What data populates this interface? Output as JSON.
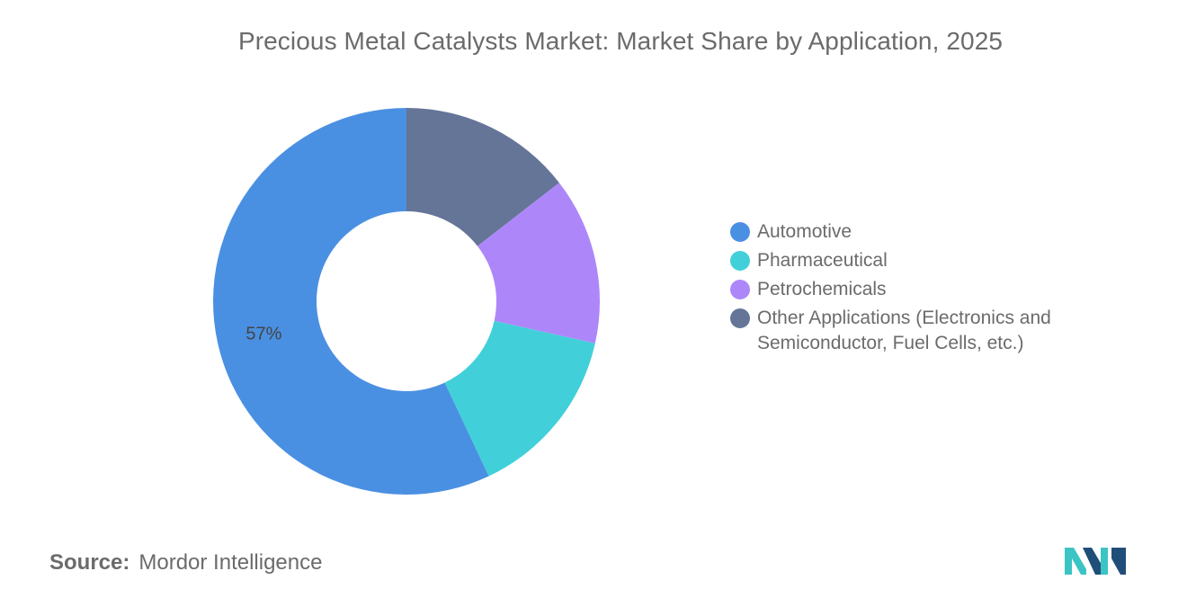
{
  "chart_data": {
    "type": "pie",
    "title": "Precious Metal Catalysts Market: Market Share by Application, 2025",
    "slices": [
      {
        "label": "Automotive",
        "value": 57,
        "color": "#4a90e2",
        "data_label": "57%"
      },
      {
        "label": "Pharmaceutical",
        "value": 14.5,
        "color": "#41d0d9",
        "data_label": ""
      },
      {
        "label": "Petrochemicals",
        "value": 14,
        "color": "#ad87fa",
        "data_label": ""
      },
      {
        "label": "Other Applications (Electronics and Semiconductor, Fuel Cells, etc.)",
        "value": 14.5,
        "color": "#657598",
        "data_label": ""
      }
    ],
    "donut": true,
    "legend_position": "right"
  },
  "source": {
    "label": "Source:",
    "value": "Mordor Intelligence"
  },
  "logo": {
    "icon": "mordor-intelligence-logo",
    "colors": [
      "#1f4e79",
      "#3bc4c4"
    ]
  }
}
